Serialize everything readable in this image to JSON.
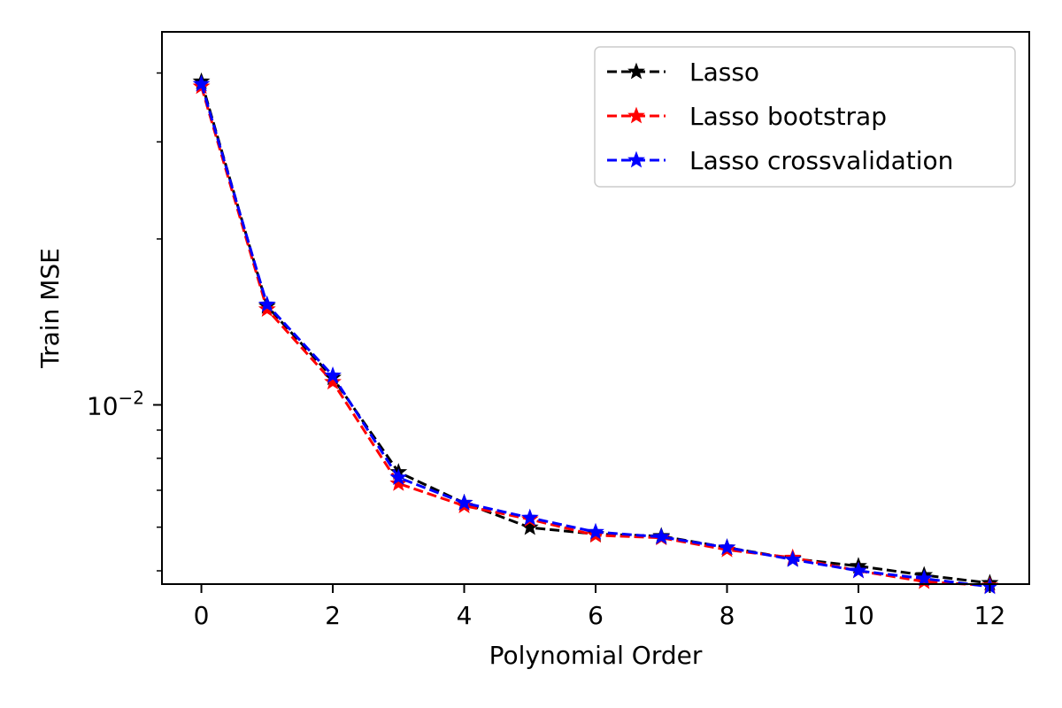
{
  "chart_data": {
    "type": "line",
    "xlabel": "Polynomial Order",
    "ylabel": "Train MSE",
    "yscale": "log",
    "xlim": [
      -0.6,
      12.6
    ],
    "ylim": [
      0.00473,
      0.0475
    ],
    "x_ticks": [
      0,
      2,
      4,
      6,
      8,
      10,
      12
    ],
    "x_tick_labels": [
      "0",
      "2",
      "4",
      "6",
      "8",
      "10",
      "12"
    ],
    "y_major_ticks": [
      {
        "value": 0.01,
        "base": "10",
        "exp": "−2"
      }
    ],
    "y_minor_ticks": [
      0.005,
      0.006,
      0.007,
      0.008,
      0.009,
      0.02,
      0.03,
      0.04
    ],
    "grid": false,
    "legend_position": "top-right",
    "x": [
      0,
      1,
      2,
      3,
      4,
      5,
      6,
      7,
      8,
      9,
      10,
      11,
      12
    ],
    "series": [
      {
        "name": "Lasso",
        "color": "#000000",
        "values": [
          0.0386,
          0.0151,
          0.0112,
          0.00755,
          0.00664,
          0.00599,
          0.00583,
          0.00578,
          0.00551,
          0.00526,
          0.0051,
          0.00491,
          0.00475
        ]
      },
      {
        "name": "Lasso bootstrap",
        "color": "#ff0000",
        "values": [
          0.0378,
          0.0149,
          0.011,
          0.0072,
          0.00656,
          0.0062,
          0.0058,
          0.00574,
          0.00546,
          0.00528,
          0.005,
          0.00478,
          0.0047
        ]
      },
      {
        "name": "Lasso crossvalidation",
        "color": "#0000ff",
        "values": [
          0.0382,
          0.0152,
          0.0113,
          0.00738,
          0.00664,
          0.00624,
          0.00588,
          0.00576,
          0.00551,
          0.00524,
          0.005,
          0.00484,
          0.00468
        ]
      }
    ]
  }
}
